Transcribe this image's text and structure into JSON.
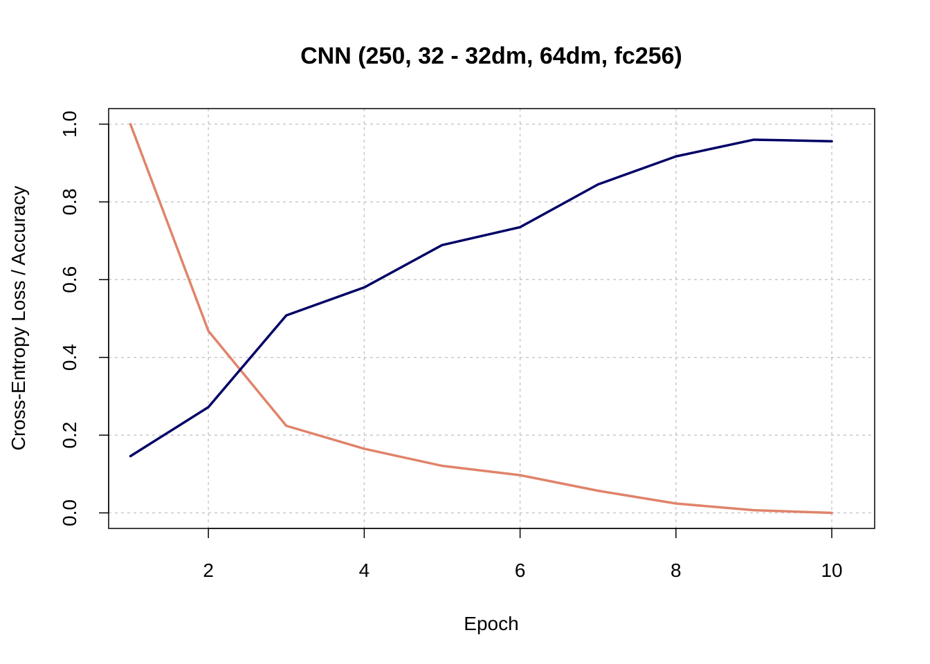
{
  "chart_data": {
    "type": "line",
    "title": "CNN (250, 32 - 32dm, 64dm, fc256)",
    "xlabel": "Epoch",
    "ylabel": "Cross-Entropy Loss / Accuracy",
    "x": [
      1,
      2,
      3,
      4,
      5,
      6,
      7,
      8,
      9,
      10
    ],
    "xlim": [
      0.72,
      10.55
    ],
    "ylim": [
      -0.04,
      1.04
    ],
    "x_ticks": [
      2,
      4,
      6,
      8,
      10
    ],
    "x_tick_labels": [
      "2",
      "4",
      "6",
      "8",
      "10"
    ],
    "y_ticks": [
      0.0,
      0.2,
      0.4,
      0.6,
      0.8,
      1.0
    ],
    "y_tick_labels": [
      "0.0",
      "0.2",
      "0.4",
      "0.6",
      "0.8",
      "1.0"
    ],
    "grid": true,
    "legend": "none",
    "series": [
      {
        "color": "#E0836A",
        "values": [
          1.0,
          0.468,
          0.224,
          0.165,
          0.121,
          0.097,
          0.057,
          0.024,
          0.007,
          0.0
        ]
      },
      {
        "color": "#000066",
        "values": [
          0.146,
          0.272,
          0.508,
          0.58,
          0.689,
          0.735,
          0.845,
          0.917,
          0.96,
          0.956
        ]
      }
    ]
  }
}
